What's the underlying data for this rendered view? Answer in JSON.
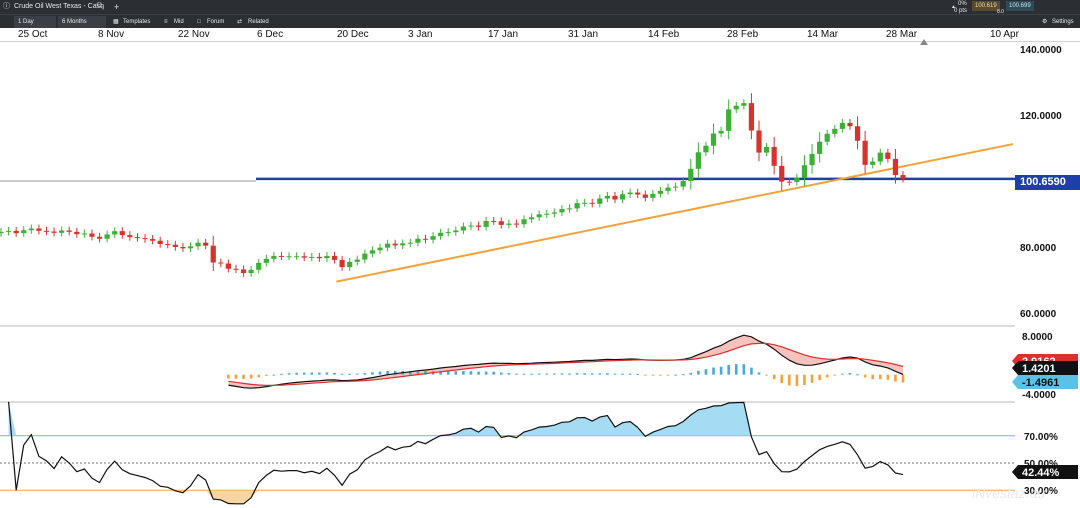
{
  "topbar": {
    "instrument": "Crude Oil West Texas - Cash",
    "change_pct": "0%",
    "change_pts": "0 pts",
    "sell_price": "100.619",
    "buy_price": "100.699",
    "spread": "8.0"
  },
  "toolbar": {
    "interval": "1 Day",
    "range": "6 Months",
    "templates_label": "Templates",
    "mid_label": "Mid",
    "forum_label": "Forum",
    "related_label": "Related",
    "settings_label": "Settings"
  },
  "colors": {
    "up": "#3cb035",
    "down": "#d8322c",
    "horizontal_line": "#1f3fa8",
    "trendline": "#f2a23b",
    "rsi_upper": "#5bc1e6",
    "rsi_lower": "#f2a23b"
  },
  "chart_data": [
    {
      "type": "candlestick",
      "x_tick_labels": [
        "25 Oct",
        "8 Nov",
        "22 Nov",
        "6 Dec",
        "20 Dec",
        "3 Jan",
        "17 Jan",
        "31 Jan",
        "14 Feb",
        "28 Feb",
        "14 Mar",
        "28 Mar",
        "10 Apr"
      ],
      "y_tick_labels": [
        "140.0000",
        "120.0000",
        "80.0000",
        "60.0000"
      ],
      "ylim": [
        60,
        140
      ],
      "current_price_label": "100.6590",
      "horizontal_line_value": 100.659,
      "trendline": {
        "from": [
          "20 Dec",
          69.5
        ],
        "to": [
          "10 Apr",
          111.5
        ]
      },
      "close": [
        84.6,
        84.9,
        84.2,
        85.1,
        85.6,
        84.9,
        84.7,
        84.3,
        85.0,
        84.6,
        83.9,
        84.1,
        83.1,
        82.5,
        83.8,
        84.8,
        83.6,
        83.0,
        82.7,
        82.4,
        81.9,
        80.9,
        80.7,
        80.0,
        79.6,
        80.2,
        81.3,
        80.4,
        75.3,
        75.0,
        73.4,
        73.2,
        72.1,
        73.1,
        75.2,
        76.4,
        77.3,
        77.1,
        77.2,
        77.2,
        76.8,
        77.0,
        76.6,
        77.3,
        76.1,
        73.9,
        75.5,
        76.2,
        78.0,
        79.0,
        79.8,
        81.0,
        80.5,
        81.1,
        81.3,
        82.5,
        82.2,
        83.3,
        84.3,
        84.5,
        85.0,
        86.2,
        86.5,
        86.1,
        87.9,
        87.8,
        86.7,
        87.1,
        86.9,
        88.4,
        89.0,
        89.9,
        90.1,
        90.5,
        91.5,
        91.7,
        93.3,
        93.4,
        93.1,
        94.7,
        95.5,
        94.4,
        96.0,
        96.5,
        95.9,
        94.9,
        96.1,
        97.0,
        98.0,
        98.3,
        100.0,
        103.7,
        108.7,
        110.7,
        114.4,
        115.2,
        121.7,
        122.8,
        123.6,
        115.3,
        108.6,
        110.3,
        104.6,
        99.8,
        99.7,
        101.0,
        104.8,
        108.2,
        111.9,
        114.3,
        115.8,
        117.6,
        116.6,
        112.2,
        104.9,
        105.9,
        108.6,
        106.7,
        101.8,
        100.7
      ]
    },
    {
      "type": "macd",
      "y_tick_labels": [
        "8.0000",
        "-4.0000"
      ],
      "ylim": [
        -4,
        8
      ],
      "macd_label": "1.4201",
      "signal_label": "2.9162",
      "histogram_label": "-1.4961"
    },
    {
      "type": "rsi",
      "y_tick_labels": [
        "70.00%",
        "50.00%",
        "30.00%"
      ],
      "ylim": [
        20,
        100
      ],
      "overbought": 70,
      "oversold": 30,
      "current_label": "42.44%"
    }
  ],
  "watermark": "iNvestaz.au"
}
